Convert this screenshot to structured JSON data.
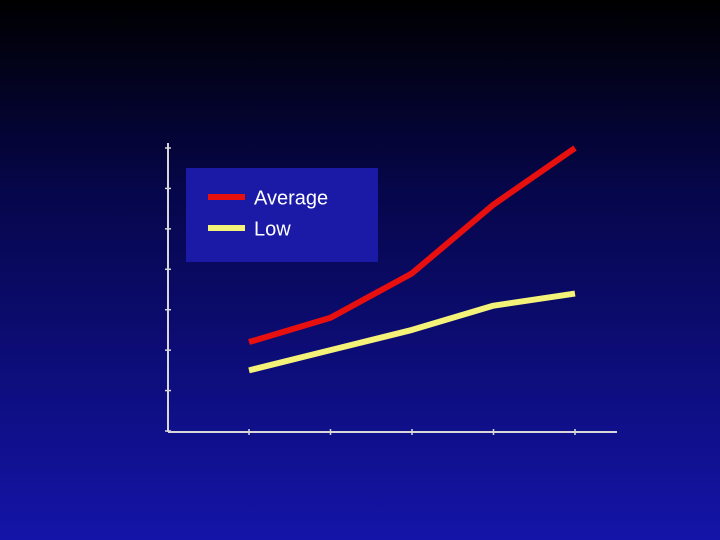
{
  "chart_data": {
    "type": "line",
    "categories": [
      null,
      null,
      null,
      null,
      null
    ],
    "series": [
      {
        "name": "Average",
        "color": "#e80f0f",
        "values": [
          2.2,
          2.8,
          3.9,
          5.6,
          7.0
        ]
      },
      {
        "name": "Low",
        "color": "#f5f27a",
        "values": [
          1.5,
          2.0,
          2.5,
          3.1,
          3.4
        ]
      }
    ],
    "ylim": [
      0,
      7
    ],
    "yticks": [
      0,
      1,
      2,
      3,
      4,
      5,
      6,
      7
    ],
    "grid": false,
    "legend": "upper-left"
  }
}
